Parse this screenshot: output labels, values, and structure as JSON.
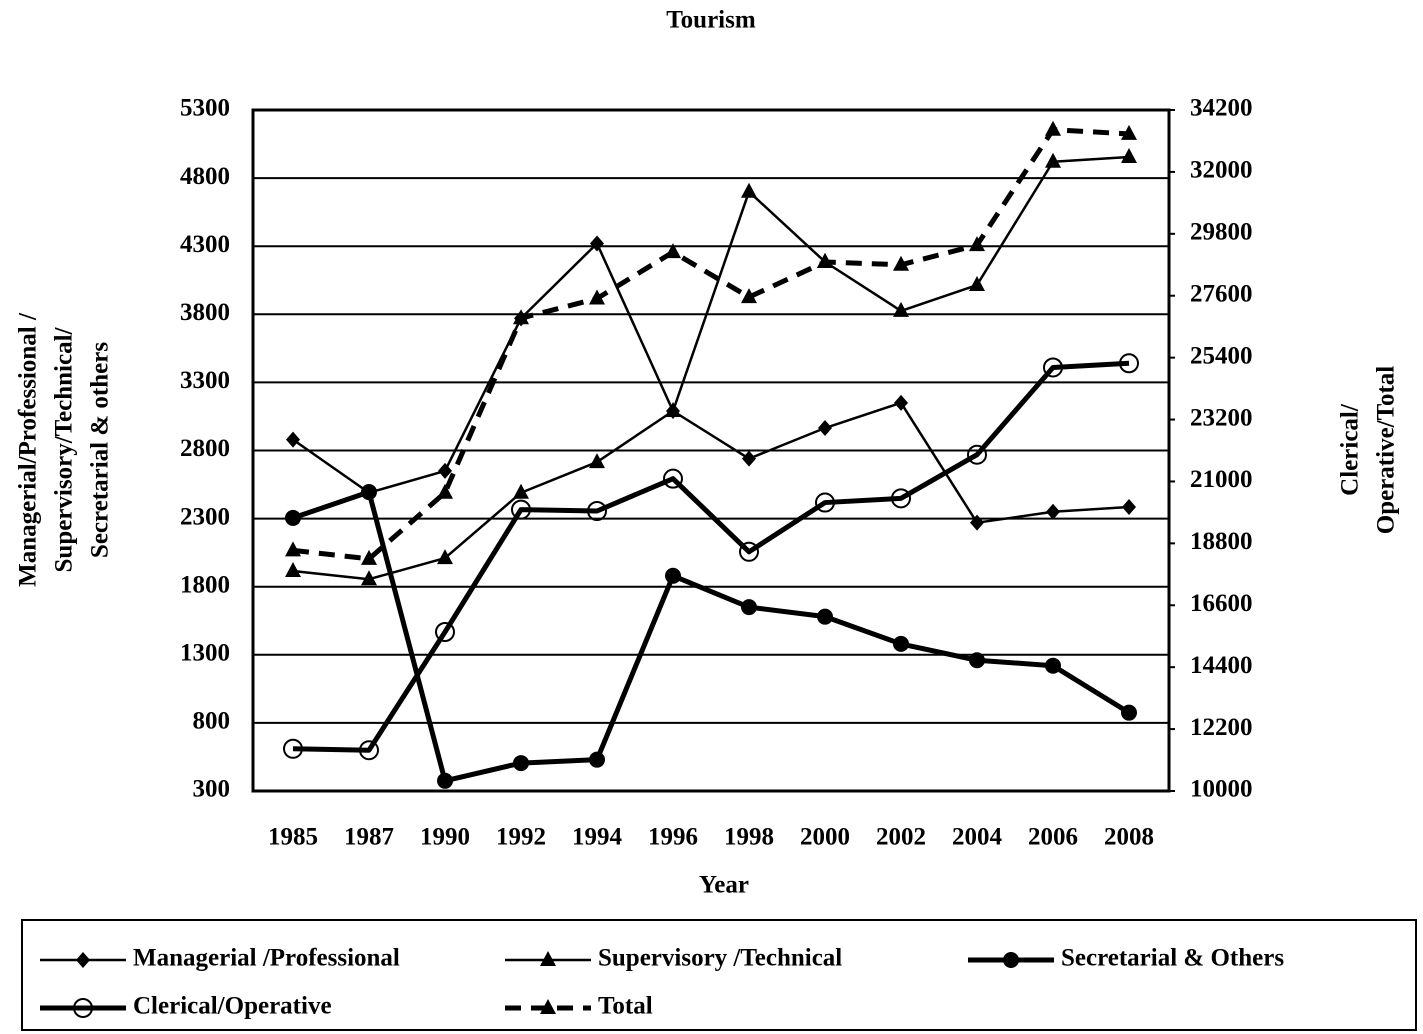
{
  "chart_data": {
    "type": "line",
    "title": "Tourism",
    "xlabel": "Year",
    "ylabel": [
      "Managerial/Professional /",
      "Supervisory/Technical/",
      "Secretarial & others"
    ],
    "y2label": [
      "Clerical/",
      "Operative/Total"
    ],
    "categories": [
      "1985",
      "1987",
      "1990",
      "1992",
      "1994",
      "1996",
      "1998",
      "2000",
      "2002",
      "2004",
      "2006",
      "2008"
    ],
    "ylim": [
      300,
      5300
    ],
    "yticks": [
      300,
      800,
      1300,
      1800,
      2300,
      2800,
      3300,
      3800,
      4300,
      4800,
      5300
    ],
    "y2lim": [
      10000,
      34200
    ],
    "y2ticks": [
      10000,
      12200,
      14400,
      16600,
      18800,
      21000,
      23200,
      25400,
      27600,
      29800,
      32000,
      34200
    ],
    "grid": true,
    "series": [
      {
        "name": "Managerial /Professional",
        "color": "#000000",
        "marker": "diamond",
        "width": 2.5,
        "dashed": false,
        "values": [
          2880,
          2490,
          2650,
          3770,
          4320,
          3090,
          2740,
          2965,
          3150,
          2270,
          2350,
          2385
        ]
      },
      {
        "name": "Supervisory /Technical",
        "color": "#000000",
        "marker": "triangle",
        "width": 2.5,
        "dashed": false,
        "values": [
          1915,
          1855,
          2010,
          2490,
          2715,
          3090,
          4700,
          4185,
          3825,
          4015,
          4920,
          4955
        ]
      },
      {
        "name": "Secretarial & Others",
        "color": "#000000",
        "marker": "circle",
        "width": 5,
        "dashed": false,
        "values": [
          2305,
          2495,
          375,
          505,
          530,
          1880,
          1650,
          1580,
          1380,
          1260,
          1220,
          875
        ]
      },
      {
        "name": "Clerical/Operative",
        "color": "#000000",
        "marker": "open-circle",
        "width": 5,
        "dashed": false,
        "axis": "y2",
        "values": [
          11500,
          11450,
          15650,
          20000,
          19950,
          21100,
          18500,
          20250,
          20400,
          21950,
          25050,
          25200
        ]
      },
      {
        "name": "Total",
        "color": "#000000",
        "marker": "triangle",
        "width": 5,
        "dashed": true,
        "axis": "y2",
        "values": [
          18550,
          18250,
          20600,
          26800,
          27500,
          29150,
          27550,
          28800,
          28700,
          29400,
          33500,
          33350
        ]
      }
    ]
  }
}
